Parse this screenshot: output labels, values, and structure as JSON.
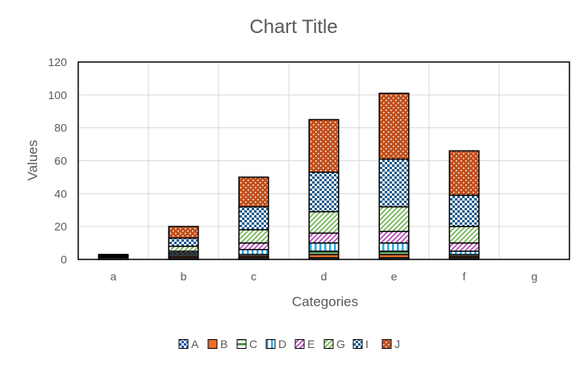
{
  "chart_data": {
    "type": "bar",
    "stacked": true,
    "title": "Chart Title",
    "xlabel": "Categories",
    "ylabel": "Values",
    "categories": [
      "a",
      "b",
      "c",
      "d",
      "e",
      "f",
      "g"
    ],
    "ylim": [
      0,
      120
    ],
    "yticks": [
      0,
      20,
      40,
      60,
      80,
      100,
      120
    ],
    "grid": true,
    "legend_position": "bottom",
    "series": [
      {
        "name": "A",
        "color": "#1f5aa6",
        "pattern": "checker",
        "values": [
          1,
          1,
          1,
          1,
          1,
          1,
          0
        ]
      },
      {
        "name": "B",
        "color": "#e8702a",
        "pattern": "solid",
        "values": [
          0.5,
          1,
          1,
          2,
          2,
          1,
          0
        ]
      },
      {
        "name": "C",
        "color": "#2e8b3a",
        "pattern": "hlines",
        "values": [
          0.5,
          1,
          1,
          2,
          2,
          1,
          0
        ]
      },
      {
        "name": "D",
        "color": "#2fa8e0",
        "pattern": "vlines",
        "values": [
          0.5,
          1,
          3,
          5,
          5,
          2,
          0
        ]
      },
      {
        "name": "E",
        "color": "#b040b0",
        "pattern": "diag",
        "values": [
          0.5,
          1,
          4,
          6,
          7,
          5,
          0
        ]
      },
      {
        "name": "G",
        "color": "#6ab04c",
        "pattern": "diag",
        "values": [
          0,
          3,
          8,
          13,
          15,
          10,
          0
        ]
      },
      {
        "name": "I",
        "color": "#1f5a8a",
        "pattern": "checker",
        "values": [
          0,
          5,
          14,
          24,
          29,
          19,
          0
        ]
      },
      {
        "name": "J",
        "color": "#c0501e",
        "pattern": "dots",
        "values": [
          0,
          7,
          18,
          32,
          40,
          27,
          0
        ]
      }
    ]
  }
}
